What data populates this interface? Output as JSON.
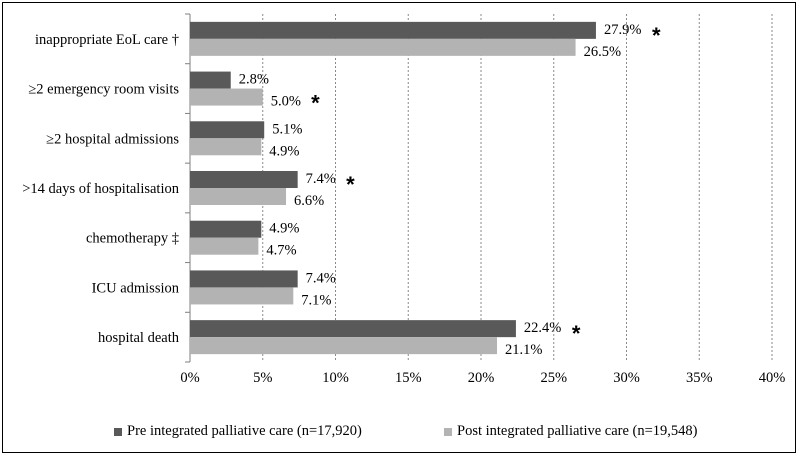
{
  "chart_data": {
    "type": "bar",
    "orientation": "horizontal",
    "categories": [
      "inappropriate EoL care †",
      "≥2 emergency room visits",
      "≥2 hospital admissions",
      ">14 days of hospitalisation",
      "chemotherapy ‡",
      "ICU admission",
      "hospital death"
    ],
    "series": [
      {
        "name": "Pre integrated palliative care (n=17,920)",
        "color": "#595959",
        "values": [
          27.9,
          2.8,
          5.1,
          7.4,
          4.9,
          7.4,
          22.4
        ],
        "labels": [
          "27.9%",
          "2.8%",
          "5.1%",
          "7.4%",
          "4.9%",
          "7.4%",
          "22.4%"
        ]
      },
      {
        "name": "Post integrated palliative care (n=19,548)",
        "color": "#b3b3b3",
        "values": [
          26.5,
          5.0,
          4.9,
          6.6,
          4.7,
          7.1,
          21.1
        ],
        "labels": [
          "26.5%",
          "5.0%",
          "4.9%",
          "6.6%",
          "4.7%",
          "7.1%",
          "21.1%"
        ]
      }
    ],
    "significance_marks": [
      {
        "category_index": 0,
        "series_index": 0,
        "symbol": "*"
      },
      {
        "category_index": 1,
        "series_index": 1,
        "symbol": "*"
      },
      {
        "category_index": 3,
        "series_index": 0,
        "symbol": "*"
      },
      {
        "category_index": 6,
        "series_index": 0,
        "symbol": "*"
      }
    ],
    "xlim": [
      0,
      40
    ],
    "xticks": [
      "0%",
      "5%",
      "10%",
      "15%",
      "20%",
      "25%",
      "30%",
      "35%",
      "40%"
    ],
    "grid": "vertical dashed",
    "legend_position": "bottom",
    "title": "",
    "xlabel": "",
    "ylabel": ""
  }
}
